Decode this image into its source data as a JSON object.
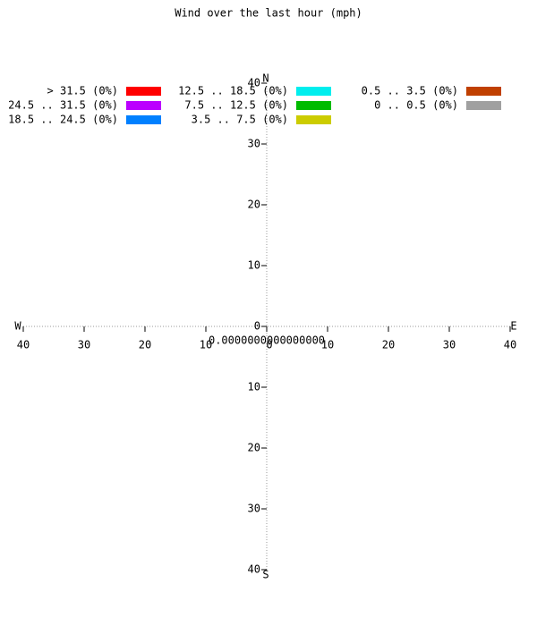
{
  "chart_data": {
    "type": "wind-rose",
    "title": "Wind over the last hour (mph)",
    "center_label": "0.0000000000000000",
    "directions": {
      "north": "N",
      "east": "E",
      "south": "S",
      "west": "W"
    },
    "rlim": [
      0,
      40
    ],
    "rticks": [
      0,
      10,
      20,
      30,
      40
    ],
    "series": [
      {
        "name": "> 31.5 (0%)",
        "color": "#ff0000"
      },
      {
        "name": "24.5 .. 31.5 (0%)",
        "color": "#bb00ff"
      },
      {
        "name": "18.5 .. 24.5 (0%)",
        "color": "#0080ff"
      },
      {
        "name": "12.5 .. 18.5 (0%)",
        "color": "#00eeee"
      },
      {
        "name": "7.5 .. 12.5 (0%)",
        "color": "#00bb00"
      },
      {
        "name": "3.5 .. 7.5 (0%)",
        "color": "#cccc00"
      },
      {
        "name": "0.5 .. 3.5 (0%)",
        "color": "#c04000"
      },
      {
        "name": "0 .. 0.5 (0%)",
        "color": "#a0a0a0"
      }
    ]
  }
}
